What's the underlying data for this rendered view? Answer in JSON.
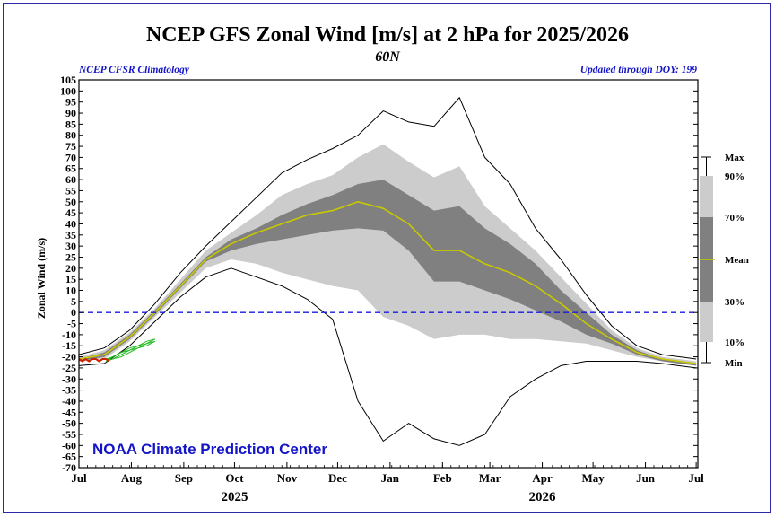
{
  "title": "NCEP GFS Zonal Wind [m/s] at 2 hPa for 2025/2026",
  "subtitle": "60N",
  "left_note": "NCEP CFSR Climatology",
  "right_note": "Updated through DOY: 199",
  "footer": "NOAA Climate Prediction Center",
  "colors": {
    "frame": "#2a2aa8",
    "note_blue": "#1515c8",
    "band_10_90": "#cccccc",
    "band_30_70": "#808080",
    "mean": "#c8c800",
    "zero_line": "#1a1ae0",
    "observed": "#cc2200",
    "forecast": "#22bb22"
  },
  "chart_data": {
    "type": "area",
    "title": "NCEP GFS Zonal Wind [m/s] at 2 hPa for 2025/2026",
    "subtitle": "60N",
    "ylabel": "Zonal Wind (m/s)",
    "xlabel": "",
    "ylim": [
      -70,
      105
    ],
    "yticks": [
      -70,
      -65,
      -60,
      -55,
      -50,
      -45,
      -40,
      -35,
      -30,
      -25,
      -20,
      -15,
      -10,
      -5,
      0,
      5,
      10,
      15,
      20,
      25,
      30,
      35,
      40,
      45,
      50,
      55,
      60,
      65,
      70,
      75,
      80,
      85,
      90,
      95,
      100,
      105
    ],
    "xlim": [
      0,
      366
    ],
    "month_ticks": [
      {
        "label": "Jul",
        "day": 0
      },
      {
        "label": "Aug",
        "day": 31
      },
      {
        "label": "Sep",
        "day": 62
      },
      {
        "label": "Oct",
        "day": 92
      },
      {
        "label": "Nov",
        "day": 123
      },
      {
        "label": "Dec",
        "day": 153
      },
      {
        "label": "Jan",
        "day": 184
      },
      {
        "label": "Feb",
        "day": 215
      },
      {
        "label": "Mar",
        "day": 243
      },
      {
        "label": "Apr",
        "day": 274
      },
      {
        "label": "May",
        "day": 304
      },
      {
        "label": "Jun",
        "day": 335
      },
      {
        "label": "Jul",
        "day": 365
      }
    ],
    "year_labels": [
      {
        "label": "2025",
        "day": 92
      },
      {
        "label": "2026",
        "day": 274
      }
    ],
    "reference_line": {
      "y": 0,
      "style": "dashed"
    },
    "legend": {
      "position": "right",
      "labels": [
        "Max",
        "90%",
        "70%",
        "Mean",
        "30%",
        "10%",
        "Min"
      ]
    },
    "x": [
      0,
      15,
      30,
      45,
      60,
      75,
      90,
      105,
      120,
      135,
      150,
      165,
      180,
      195,
      210,
      225,
      240,
      255,
      270,
      285,
      300,
      315,
      330,
      345,
      365
    ],
    "series": [
      {
        "name": "Max",
        "values": [
          -19,
          -16,
          -8,
          4,
          18,
          30,
          41,
          52,
          63,
          69,
          74,
          80,
          91,
          86,
          84,
          97,
          70,
          58,
          38,
          24,
          8,
          -6,
          -15,
          -19,
          -21
        ]
      },
      {
        "name": "90%",
        "values": [
          -20,
          -17,
          -9,
          2,
          15,
          28,
          36,
          44,
          53,
          58,
          62,
          70,
          76,
          68,
          61,
          66,
          48,
          38,
          28,
          16,
          4,
          -8,
          -16,
          -20,
          -22
        ]
      },
      {
        "name": "70%",
        "values": [
          -21,
          -18,
          -10,
          1,
          13,
          25,
          33,
          38,
          44,
          49,
          53,
          58,
          60,
          53,
          46,
          48,
          38,
          31,
          22,
          10,
          0,
          -10,
          -17,
          -21,
          -23
        ]
      },
      {
        "name": "Mean",
        "values": [
          -21,
          -19,
          -11,
          0,
          12,
          24,
          31,
          36,
          40,
          44,
          46,
          50,
          47,
          40,
          28,
          28,
          22,
          18,
          12,
          4,
          -5,
          -12,
          -18,
          -21,
          -23
        ]
      },
      {
        "name": "30%",
        "values": [
          -22,
          -20,
          -12,
          -1,
          11,
          23,
          28,
          31,
          33,
          35,
          37,
          38,
          37,
          28,
          14,
          14,
          10,
          6,
          1,
          -4,
          -10,
          -14,
          -19,
          -22,
          -24
        ]
      },
      {
        "name": "10%",
        "values": [
          -22,
          -21,
          -13,
          -2,
          9,
          20,
          24,
          22,
          18,
          15,
          12,
          10,
          -2,
          -6,
          -12,
          -10,
          -10,
          -12,
          -12,
          -13,
          -14,
          -17,
          -20,
          -22,
          -24
        ]
      },
      {
        "name": "Min",
        "values": [
          -24,
          -23,
          -15,
          -4,
          7,
          16,
          20,
          16,
          12,
          6,
          -3,
          -40,
          -58,
          -50,
          -57,
          -60,
          -55,
          -38,
          -30,
          -24,
          -22,
          -22,
          -22,
          -23,
          -25
        ]
      }
    ],
    "observed": {
      "x": [
        0,
        2,
        4,
        6,
        8,
        10,
        12,
        14,
        16,
        18
      ],
      "values": [
        -21,
        -22,
        -21,
        -22,
        -21,
        -21,
        -22,
        -21,
        -21,
        -22
      ]
    },
    "forecast_ensemble": {
      "x": [
        16,
        20,
        25,
        30,
        35,
        40,
        45
      ],
      "members": [
        [
          -21,
          -20,
          -18,
          -17,
          -15,
          -13,
          -12
        ],
        [
          -22,
          -21,
          -19,
          -17,
          -16,
          -14,
          -12
        ],
        [
          -21,
          -21,
          -20,
          -18,
          -16,
          -15,
          -13
        ],
        [
          -22,
          -20,
          -18,
          -16,
          -15,
          -14,
          -13
        ]
      ]
    }
  }
}
